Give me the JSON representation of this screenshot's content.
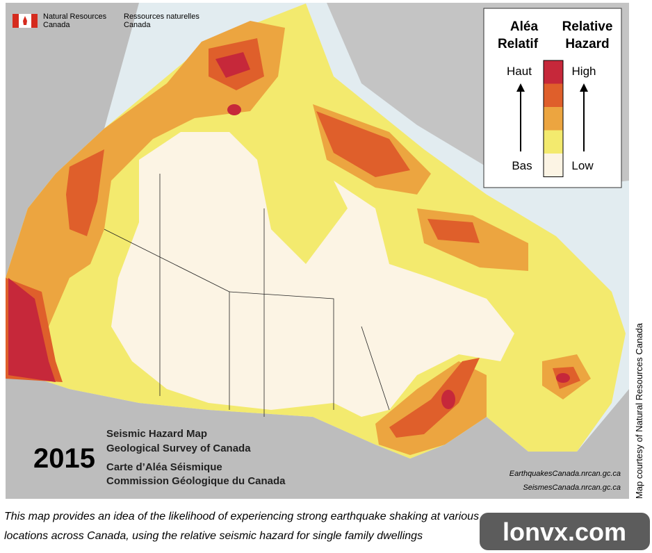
{
  "header": {
    "agency_en": [
      "Natural Resources",
      "Canada"
    ],
    "agency_fr": [
      "Ressources naturelles",
      "Canada"
    ]
  },
  "legend": {
    "title_fr": [
      "Aléa",
      "Relatif"
    ],
    "title_en": [
      "Relative",
      "Hazard"
    ],
    "high_fr": "Haut",
    "high_en": "High",
    "low_fr": "Bas",
    "low_en": "Low",
    "colors": [
      "#c6283a",
      "#df5f2b",
      "#eca540",
      "#f3ea6e",
      "#fcf4e4"
    ]
  },
  "title_block": {
    "year": "2015",
    "lines": [
      "Seismic Hazard Map",
      "Geological Survey of Canada",
      "Carte d’Aléa Séismique",
      "Commission Géologique du Canada"
    ]
  },
  "links": [
    "EarthquakesCanada.nrcan.gc.ca",
    "SeismesCanada.nrcan.gc.ca"
  ],
  "credit": "Map courtesy of Natural Resources Canada",
  "caption": [
    "This map provides an idea of the likelihood of experiencing strong earthquake shaking at various",
    "locations across Canada, using the relative seismic hazard for single family dwellings"
  ],
  "watermark": "lonvx.com"
}
